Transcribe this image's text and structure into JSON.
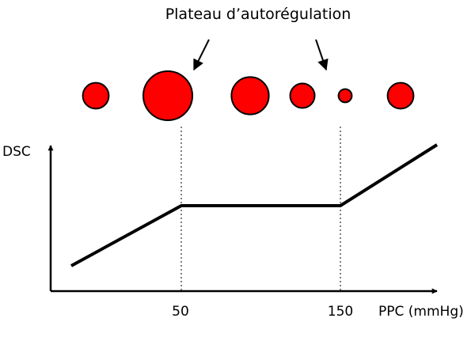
{
  "title": "Plateau d’autorégulation",
  "y_axis_label": "DSC",
  "x_axis_label": "PPC (mmHg)",
  "x_ticks": [
    "50",
    "150"
  ],
  "colors": {
    "vessel_fill": "#ff0000",
    "stroke": "#000000"
  },
  "vessels": [
    {
      "name": "vessel-1",
      "relative_diameter": 0.53
    },
    {
      "name": "vessel-2",
      "relative_diameter": 1.0
    },
    {
      "name": "vessel-3",
      "relative_diameter": 0.76
    },
    {
      "name": "vessel-4",
      "relative_diameter": 0.5
    },
    {
      "name": "vessel-5",
      "relative_diameter": 0.27
    },
    {
      "name": "vessel-6",
      "relative_diameter": 0.53
    }
  ]
}
